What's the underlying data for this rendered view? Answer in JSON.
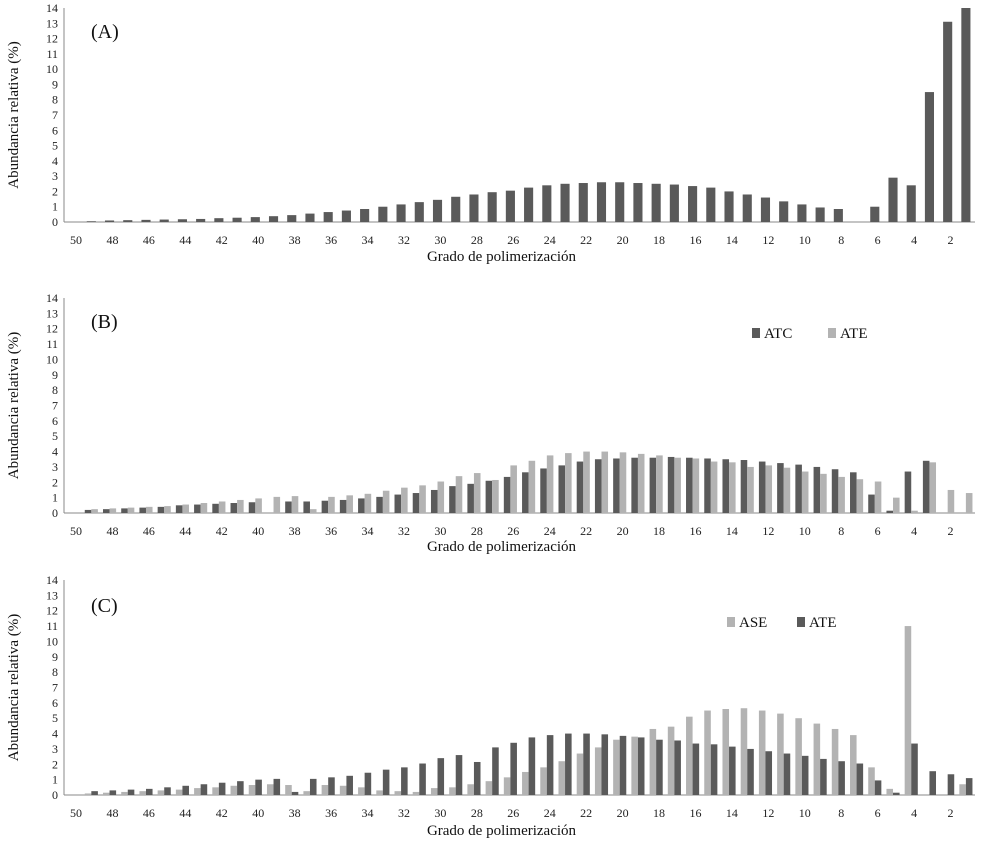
{
  "chart_data": [
    {
      "type": "bar",
      "panel_label": "(A)",
      "xlabel": "Grado de polimerización",
      "ylabel": "Abundancia relativa (%)",
      "ylim": [
        0,
        14
      ],
      "yticks": [
        0,
        1,
        2,
        3,
        4,
        5,
        6,
        7,
        8,
        9,
        10,
        11,
        12,
        13,
        14
      ],
      "x_order": "descending",
      "categories": [
        50,
        49,
        48,
        47,
        46,
        45,
        44,
        43,
        42,
        41,
        40,
        39,
        38,
        37,
        36,
        35,
        34,
        33,
        32,
        31,
        30,
        29,
        28,
        27,
        26,
        25,
        24,
        23,
        22,
        21,
        20,
        19,
        18,
        17,
        16,
        15,
        14,
        13,
        12,
        11,
        10,
        9,
        8,
        7,
        6,
        5,
        4,
        3,
        2,
        1
      ],
      "xtick_labels": [
        "50",
        "48",
        "46",
        "44",
        "42",
        "40",
        "38",
        "36",
        "34",
        "32",
        "30",
        "28",
        "26",
        "24",
        "22",
        "20",
        "18",
        "16",
        "14",
        "12",
        "10",
        "8",
        "6",
        "4",
        "2"
      ],
      "legend": null,
      "series": [
        {
          "name": "",
          "color": "#5a5a5a",
          "values": [
            0,
            0.05,
            0.1,
            0.12,
            0.14,
            0.16,
            0.18,
            0.2,
            0.25,
            0.28,
            0.32,
            0.38,
            0.45,
            0.55,
            0.65,
            0.75,
            0.85,
            1.0,
            1.15,
            1.3,
            1.45,
            1.65,
            1.8,
            1.95,
            2.05,
            2.25,
            2.4,
            2.5,
            2.55,
            2.6,
            2.6,
            2.55,
            2.5,
            2.45,
            2.35,
            2.25,
            2.0,
            1.8,
            1.6,
            1.35,
            1.15,
            0.95,
            0.85,
            0,
            1.0,
            2.9,
            2.4,
            8.5,
            13.1,
            14.0
          ]
        }
      ]
    },
    {
      "type": "bar",
      "panel_label": "(B)",
      "xlabel": "Grado de polimerización",
      "ylabel": "Abundancia relativa (%)",
      "ylim": [
        0,
        14
      ],
      "yticks": [
        0,
        1,
        2,
        3,
        4,
        5,
        6,
        7,
        8,
        9,
        10,
        11,
        12,
        13,
        14
      ],
      "x_order": "descending",
      "categories": [
        50,
        49,
        48,
        47,
        46,
        45,
        44,
        43,
        42,
        41,
        40,
        39,
        38,
        37,
        36,
        35,
        34,
        33,
        32,
        31,
        30,
        29,
        28,
        27,
        26,
        25,
        24,
        23,
        22,
        21,
        20,
        19,
        18,
        17,
        16,
        15,
        14,
        13,
        12,
        11,
        10,
        9,
        8,
        7,
        6,
        5,
        4,
        3,
        2,
        1
      ],
      "xtick_labels": [
        "50",
        "48",
        "46",
        "44",
        "42",
        "40",
        "38",
        "36",
        "34",
        "32",
        "30",
        "28",
        "26",
        "24",
        "22",
        "20",
        "18",
        "16",
        "14",
        "12",
        "10",
        "8",
        "6",
        "4",
        "2"
      ],
      "legend": "top-right",
      "series": [
        {
          "name": "ATC",
          "color": "#5a5a5a",
          "values": [
            0,
            0.2,
            0.25,
            0.3,
            0.35,
            0.4,
            0.5,
            0.55,
            0.6,
            0.65,
            0.7,
            0,
            0.75,
            0.75,
            0.8,
            0.85,
            0.95,
            1.05,
            1.2,
            1.3,
            1.5,
            1.75,
            1.9,
            2.1,
            2.35,
            2.65,
            2.9,
            3.1,
            3.35,
            3.5,
            3.55,
            3.6,
            3.6,
            3.65,
            3.6,
            3.55,
            3.5,
            3.45,
            3.35,
            3.25,
            3.15,
            3.0,
            2.85,
            2.65,
            1.2,
            0.15,
            2.7,
            3.4,
            0,
            0
          ]
        },
        {
          "name": "ATE",
          "color": "#b3b3b3",
          "values": [
            0,
            0.25,
            0.3,
            0.35,
            0.4,
            0.45,
            0.55,
            0.65,
            0.75,
            0.85,
            0.95,
            1.05,
            1.1,
            0.25,
            1.05,
            1.15,
            1.25,
            1.45,
            1.65,
            1.8,
            2.05,
            2.4,
            2.6,
            2.15,
            3.1,
            3.4,
            3.75,
            3.9,
            4.0,
            4.0,
            3.95,
            3.85,
            3.75,
            3.6,
            3.55,
            3.35,
            3.3,
            3.0,
            3.1,
            2.95,
            2.7,
            2.55,
            2.35,
            2.2,
            2.05,
            1.0,
            0.15,
            3.3,
            1.5,
            1.3
          ]
        }
      ]
    },
    {
      "type": "bar",
      "panel_label": "(C)",
      "xlabel": "Grado de polimerización",
      "ylabel": "Abundancia relativa (%)",
      "ylim": [
        0,
        14
      ],
      "yticks": [
        0,
        1,
        2,
        3,
        4,
        5,
        6,
        7,
        8,
        9,
        10,
        11,
        12,
        13,
        14
      ],
      "x_order": "descending",
      "categories": [
        50,
        49,
        48,
        47,
        46,
        45,
        44,
        43,
        42,
        41,
        40,
        39,
        38,
        37,
        36,
        35,
        34,
        33,
        32,
        31,
        30,
        29,
        28,
        27,
        26,
        25,
        24,
        23,
        22,
        21,
        20,
        19,
        18,
        17,
        16,
        15,
        14,
        13,
        12,
        11,
        10,
        9,
        8,
        7,
        6,
        5,
        4,
        3,
        2,
        1
      ],
      "xtick_labels": [
        "50",
        "48",
        "46",
        "44",
        "42",
        "40",
        "38",
        "36",
        "34",
        "32",
        "30",
        "28",
        "26",
        "24",
        "22",
        "20",
        "18",
        "16",
        "14",
        "12",
        "10",
        "8",
        "6",
        "4",
        "2"
      ],
      "legend": "top-right",
      "series": [
        {
          "name": "ASE",
          "color": "#b3b3b3",
          "values": [
            0,
            0.1,
            0.15,
            0.2,
            0.25,
            0.3,
            0.35,
            0.45,
            0.5,
            0.6,
            0.65,
            0.7,
            0.65,
            0.25,
            0.65,
            0.6,
            0.5,
            0.3,
            0.25,
            0.2,
            0.45,
            0.5,
            0.7,
            0.9,
            1.15,
            1.5,
            1.8,
            2.2,
            2.7,
            3.1,
            3.6,
            3.8,
            4.3,
            4.45,
            5.1,
            5.5,
            5.6,
            5.65,
            5.5,
            5.3,
            5.0,
            4.65,
            4.3,
            3.9,
            1.8,
            0.4,
            11.0,
            0,
            0,
            0.7
          ]
        },
        {
          "name": "ATE",
          "color": "#5a5a5a",
          "values": [
            0,
            0.25,
            0.3,
            0.35,
            0.4,
            0.5,
            0.6,
            0.7,
            0.8,
            0.9,
            1.0,
            1.05,
            0.2,
            1.05,
            1.15,
            1.25,
            1.45,
            1.65,
            1.8,
            2.05,
            2.4,
            2.6,
            2.15,
            3.1,
            3.4,
            3.75,
            3.9,
            4.0,
            4.0,
            3.95,
            3.85,
            3.75,
            3.6,
            3.55,
            3.35,
            3.3,
            3.15,
            3.0,
            2.85,
            2.7,
            2.55,
            2.35,
            2.2,
            2.05,
            0.95,
            0.15,
            3.35,
            1.55,
            1.35,
            1.1
          ]
        }
      ]
    }
  ]
}
